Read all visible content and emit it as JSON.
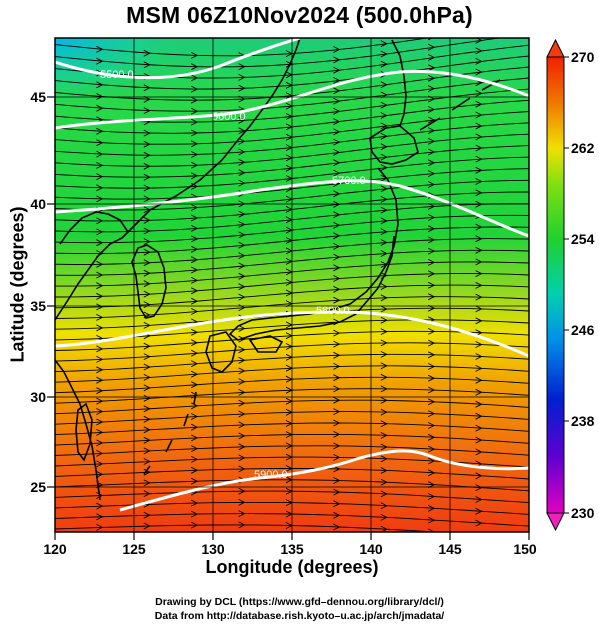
{
  "title": "MSM 06Z10Nov2024 (500.0hPa)",
  "x_axis": {
    "label": "Longitude (degrees)",
    "ticks": [
      "120",
      "125",
      "130",
      "135",
      "140",
      "145",
      "150"
    ],
    "range": [
      120,
      150
    ]
  },
  "y_axis": {
    "label": "Latitude  (degrees)",
    "ticks": [
      "25",
      "30",
      "35",
      "40",
      "45"
    ],
    "range": [
      22.4,
      47.6
    ]
  },
  "colorbar": {
    "ticks": [
      "270",
      "262",
      "254",
      "246",
      "238",
      "230"
    ],
    "range": [
      230,
      270
    ],
    "unit_values": [
      270,
      262,
      254,
      246,
      238,
      230
    ]
  },
  "contours": [
    {
      "label": "5500.0",
      "value": 5500
    },
    {
      "label": "5600.0",
      "value": 5600
    },
    {
      "label": "5700.0",
      "value": 5700
    },
    {
      "label": "5800.0",
      "value": 5800
    },
    {
      "label": "5900.0",
      "value": 5900
    }
  ],
  "credits": {
    "line1": "Drawing by DCL (https://www.gfd–dennou.org/library/dcl/)",
    "line2": "Data from http://database.rish.kyoto–u.ac.jp/arch/jmadata/"
  },
  "colors": {
    "cold": "#00c8e8",
    "mid": "#22dc3c",
    "warm": "#f0e000",
    "hot": "#f04000",
    "contour": "#ffffff"
  }
}
